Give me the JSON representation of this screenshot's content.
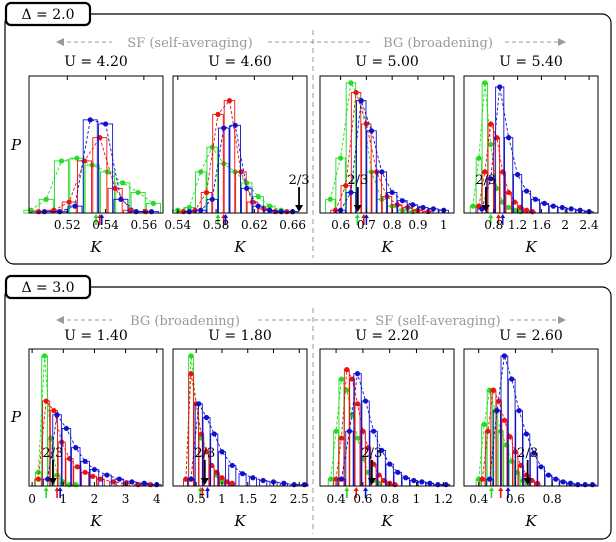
{
  "colors": {
    "green": "#22dd22",
    "red": "#ee1111",
    "blue": "#1111cc",
    "gray": "#999999",
    "black": "#000000"
  },
  "panels": [
    {
      "label": "Δ = 2.0",
      "left_regime": "SF (self-averaging)",
      "right_regime": "BG (broadening)",
      "ylabel": "P",
      "xlabel": "K"
    },
    {
      "label": "Δ = 3.0",
      "left_regime": "BG (broadening)",
      "right_regime": "SF (self-averaging)",
      "ylabel": "P",
      "xlabel": "K"
    }
  ],
  "chart_data": [
    {
      "type": "bar",
      "title": "U = 4.20",
      "xlim": [
        0.5,
        0.57
      ],
      "ticks": [
        0.52,
        0.54,
        0.56
      ],
      "tick_labels": [
        "0.52",
        "0.54",
        "0.56"
      ],
      "ref": null,
      "ref_label": "",
      "series": [
        {
          "name": "green",
          "x": [
            0.501,
            0.509,
            0.517,
            0.525,
            0.533,
            0.541,
            0.549,
            0.557,
            0.565
          ],
          "y": [
            0.02,
            0.1,
            0.38,
            0.4,
            0.35,
            0.3,
            0.22,
            0.15,
            0.07
          ],
          "mean": 0.535
        },
        {
          "name": "red",
          "x": [
            0.505,
            0.513,
            0.521,
            0.529,
            0.537,
            0.545,
            0.553,
            0.561
          ],
          "y": [
            0.01,
            0.02,
            0.08,
            0.38,
            0.55,
            0.18,
            0.02,
            0.01
          ],
          "mean": 0.537
        },
        {
          "name": "blue",
          "x": [
            0.508,
            0.516,
            0.524,
            0.532,
            0.54,
            0.548,
            0.556,
            0.564
          ],
          "y": [
            0.01,
            0.01,
            0.05,
            0.68,
            0.65,
            0.1,
            0.01,
            0.01
          ],
          "mean": 0.538
        }
      ]
    },
    {
      "type": "bar",
      "title": "U = 4.60",
      "xlim": [
        0.535,
        0.675
      ],
      "ticks": [
        0.54,
        0.58,
        0.62,
        0.66
      ],
      "tick_labels": [
        "0.54",
        "0.58",
        "0.62",
        "0.66"
      ],
      "ref": 0.6667,
      "ref_label": "2/3",
      "series": [
        {
          "name": "green",
          "x": [
            0.54,
            0.552,
            0.564,
            0.576,
            0.588,
            0.6,
            0.612,
            0.624,
            0.636,
            0.648,
            0.66
          ],
          "y": [
            0.02,
            0.04,
            0.3,
            0.48,
            0.36,
            0.3,
            0.22,
            0.12,
            0.05,
            0.02,
            0.01
          ],
          "mean": 0.582
        },
        {
          "name": "red",
          "x": [
            0.546,
            0.558,
            0.57,
            0.582,
            0.594,
            0.606,
            0.618,
            0.63,
            0.642,
            0.654
          ],
          "y": [
            0.01,
            0.02,
            0.15,
            0.72,
            0.82,
            0.3,
            0.08,
            0.03,
            0.01,
            0.01
          ],
          "mean": 0.588
        },
        {
          "name": "blue",
          "x": [
            0.552,
            0.564,
            0.576,
            0.588,
            0.6,
            0.612,
            0.624,
            0.636,
            0.648,
            0.66
          ],
          "y": [
            0.01,
            0.02,
            0.1,
            0.62,
            0.64,
            0.18,
            0.05,
            0.02,
            0.01,
            0.01
          ],
          "mean": 0.59
        }
      ]
    },
    {
      "type": "bar",
      "title": "U = 5.00",
      "xlim": [
        0.52,
        1.04
      ],
      "ticks": [
        0.6,
        0.7,
        0.8,
        0.9,
        1.0
      ],
      "tick_labels": [
        "0.6",
        "0.7",
        "0.8",
        "0.9",
        "1"
      ],
      "ref": 0.6667,
      "ref_label": "2/3",
      "series": [
        {
          "name": "green",
          "x": [
            0.56,
            0.6,
            0.64,
            0.68,
            0.72,
            0.76,
            0.8,
            0.84,
            0.88
          ],
          "y": [
            0.1,
            0.4,
            0.95,
            0.82,
            0.3,
            0.1,
            0.05,
            0.02,
            0.01
          ],
          "mean": 0.665
        },
        {
          "name": "red",
          "x": [
            0.58,
            0.62,
            0.66,
            0.7,
            0.74,
            0.78,
            0.82,
            0.86,
            0.9,
            0.94
          ],
          "y": [
            0.02,
            0.2,
            0.88,
            0.65,
            0.3,
            0.12,
            0.06,
            0.04,
            0.02,
            0.01
          ],
          "mean": 0.69
        },
        {
          "name": "blue",
          "x": [
            0.6,
            0.64,
            0.68,
            0.72,
            0.76,
            0.8,
            0.84,
            0.88,
            0.92,
            0.96,
            1.0
          ],
          "y": [
            0.02,
            0.15,
            0.82,
            0.6,
            0.3,
            0.15,
            0.09,
            0.06,
            0.04,
            0.03,
            0.02
          ],
          "mean": 0.7
        }
      ]
    },
    {
      "type": "bar",
      "title": "U = 5.40",
      "xlim": [
        0.3,
        2.55
      ],
      "ticks": [
        0.8,
        1.2,
        1.6,
        2.0,
        2.4
      ],
      "tick_labels": [
        "0.8",
        "1.2",
        "1.6",
        "2",
        "2.4"
      ],
      "ref": 0.6667,
      "ref_label": "2/3",
      "series": [
        {
          "name": "green",
          "x": [
            0.45,
            0.55,
            0.65,
            0.75,
            0.85,
            0.95,
            1.05,
            1.15,
            1.25
          ],
          "y": [
            0.05,
            0.4,
            0.95,
            0.5,
            0.18,
            0.08,
            0.04,
            0.02,
            0.01
          ],
          "mean": 0.75
        },
        {
          "name": "red",
          "x": [
            0.55,
            0.65,
            0.75,
            0.85,
            0.95,
            1.05,
            1.15,
            1.25,
            1.35,
            1.45
          ],
          "y": [
            0.05,
            0.3,
            0.65,
            0.55,
            0.3,
            0.15,
            0.08,
            0.04,
            0.02,
            0.01
          ],
          "mean": 0.88
        },
        {
          "name": "blue",
          "x": [
            0.6,
            0.75,
            0.9,
            1.05,
            1.2,
            1.35,
            1.5,
            1.65,
            1.8,
            1.95,
            2.1,
            2.25,
            2.4
          ],
          "y": [
            0.03,
            0.25,
            0.92,
            0.55,
            0.28,
            0.16,
            0.1,
            0.07,
            0.05,
            0.04,
            0.03,
            0.02,
            0.01
          ],
          "mean": 0.95
        }
      ]
    },
    {
      "type": "bar",
      "title": "U = 1.40",
      "xlim": [
        -0.1,
        4.2
      ],
      "ticks": [
        0,
        1,
        2,
        3,
        4
      ],
      "tick_labels": [
        "0",
        "1",
        "2",
        "3",
        "4"
      ],
      "ref": 0.6667,
      "ref_label": "2/3",
      "series": [
        {
          "name": "green",
          "x": [
            0.2,
            0.4,
            0.6,
            0.8,
            1.0,
            1.2,
            1.4
          ],
          "y": [
            0.1,
            0.95,
            0.35,
            0.08,
            0.03,
            0.01,
            0.01
          ],
          "mean": 0.45
        },
        {
          "name": "red",
          "x": [
            0.2,
            0.45,
            0.7,
            0.95,
            1.2,
            1.45,
            1.7,
            1.95,
            2.2,
            2.6,
            3.0,
            3.4,
            3.8
          ],
          "y": [
            0.05,
            0.62,
            0.55,
            0.32,
            0.2,
            0.14,
            0.1,
            0.07,
            0.05,
            0.03,
            0.02,
            0.01,
            0.01
          ],
          "mean": 0.8
        },
        {
          "name": "blue",
          "x": [
            0.5,
            0.8,
            1.1,
            1.4,
            1.7,
            2.0,
            2.4,
            2.8,
            3.2,
            3.6,
            4.0
          ],
          "y": [
            0.05,
            0.52,
            0.42,
            0.28,
            0.18,
            0.12,
            0.08,
            0.05,
            0.03,
            0.02,
            0.01
          ],
          "mean": 0.9
        }
      ]
    },
    {
      "type": "bar",
      "title": "U = 1.80",
      "xlim": [
        0.05,
        2.65
      ],
      "ticks": [
        0.5,
        1.0,
        1.5,
        2.0,
        2.5
      ],
      "tick_labels": [
        "0.5",
        "1",
        "1.5",
        "2",
        "2.5"
      ],
      "ref": 0.6667,
      "ref_label": "2/3",
      "series": [
        {
          "name": "green",
          "x": [
            0.3,
            0.4,
            0.5,
            0.6,
            0.7,
            0.8,
            0.9,
            1.0
          ],
          "y": [
            0.05,
            0.95,
            0.6,
            0.35,
            0.25,
            0.15,
            0.08,
            0.03
          ],
          "mean": 0.58
        },
        {
          "name": "red",
          "x": [
            0.3,
            0.4,
            0.5,
            0.6,
            0.7,
            0.8,
            0.9,
            1.0,
            1.1,
            1.2
          ],
          "y": [
            0.05,
            0.82,
            0.6,
            0.38,
            0.25,
            0.15,
            0.1,
            0.06,
            0.03,
            0.02
          ],
          "mean": 0.62
        },
        {
          "name": "blue",
          "x": [
            0.4,
            0.55,
            0.7,
            0.85,
            1.0,
            1.2,
            1.4,
            1.6,
            1.8,
            2.0,
            2.2,
            2.4,
            2.6
          ],
          "y": [
            0.05,
            0.6,
            0.5,
            0.38,
            0.25,
            0.15,
            0.09,
            0.06,
            0.04,
            0.03,
            0.02,
            0.01,
            0.01
          ],
          "mean": 0.72
        }
      ]
    },
    {
      "type": "bar",
      "title": "U = 2.20",
      "xlim": [
        0.28,
        1.28
      ],
      "ticks": [
        0.4,
        0.6,
        0.8,
        1.0,
        1.2
      ],
      "tick_labels": [
        "0.4",
        "0.6",
        "0.8",
        "1",
        "1.2"
      ],
      "ref": 0.6667,
      "ref_label": "2/3",
      "series": [
        {
          "name": "green",
          "x": [
            0.36,
            0.4,
            0.44,
            0.48,
            0.52,
            0.56,
            0.6,
            0.64,
            0.68,
            0.72
          ],
          "y": [
            0.05,
            0.4,
            0.78,
            0.7,
            0.52,
            0.35,
            0.2,
            0.1,
            0.04,
            0.02
          ],
          "mean": 0.48
        },
        {
          "name": "red",
          "x": [
            0.4,
            0.44,
            0.48,
            0.52,
            0.56,
            0.6,
            0.64,
            0.68,
            0.72,
            0.76,
            0.8,
            0.84
          ],
          "y": [
            0.05,
            0.35,
            0.85,
            0.78,
            0.6,
            0.4,
            0.28,
            0.16,
            0.08,
            0.04,
            0.02,
            0.01
          ],
          "mean": 0.55
        },
        {
          "name": "blue",
          "x": [
            0.44,
            0.5,
            0.56,
            0.62,
            0.68,
            0.74,
            0.8,
            0.86,
            0.92,
            0.98,
            1.04,
            1.1,
            1.16,
            1.22
          ],
          "y": [
            0.05,
            0.4,
            0.82,
            0.62,
            0.4,
            0.26,
            0.16,
            0.1,
            0.06,
            0.04,
            0.03,
            0.02,
            0.01,
            0.01
          ],
          "mean": 0.62
        }
      ]
    },
    {
      "type": "bar",
      "title": "U = 2.60",
      "xlim": [
        0.32,
        1.05
      ],
      "ticks": [
        0.4,
        0.6,
        0.8
      ],
      "tick_labels": [
        "0.4",
        "0.6",
        "0.8"
      ],
      "ref": 0.6667,
      "ref_label": "2/3",
      "series": [
        {
          "name": "green",
          "x": [
            0.4,
            0.43,
            0.46,
            0.49,
            0.52,
            0.55,
            0.58,
            0.61,
            0.64,
            0.67
          ],
          "y": [
            0.05,
            0.45,
            0.7,
            0.55,
            0.4,
            0.3,
            0.18,
            0.1,
            0.04,
            0.02
          ],
          "mean": 0.47
        },
        {
          "name": "red",
          "x": [
            0.42,
            0.45,
            0.48,
            0.51,
            0.54,
            0.57,
            0.6,
            0.63,
            0.66,
            0.69,
            0.72
          ],
          "y": [
            0.05,
            0.4,
            0.7,
            0.62,
            0.48,
            0.36,
            0.25,
            0.15,
            0.08,
            0.04,
            0.02
          ],
          "mean": 0.52
        },
        {
          "name": "blue",
          "x": [
            0.46,
            0.5,
            0.54,
            0.58,
            0.62,
            0.66,
            0.7,
            0.74,
            0.78,
            0.82,
            0.86,
            0.9,
            0.94,
            0.98,
            1.02
          ],
          "y": [
            0.05,
            0.55,
            0.95,
            0.78,
            0.55,
            0.38,
            0.24,
            0.14,
            0.08,
            0.05,
            0.03,
            0.02,
            0.01,
            0.01,
            0.01
          ],
          "mean": 0.56
        }
      ]
    }
  ]
}
